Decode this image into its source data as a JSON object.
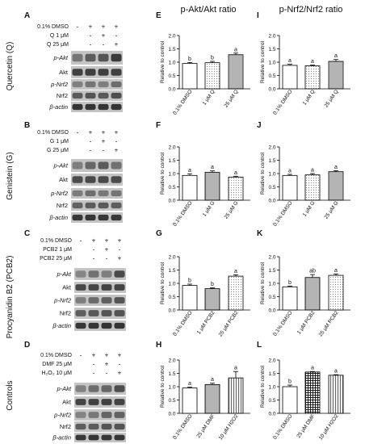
{
  "column_titles": {
    "akt": "p-Akt/Akt ratio",
    "nrf2": "p-Nrf2/Nrf2 ratio"
  },
  "blot_panels": [
    {
      "letter": "A",
      "group": "Quercetin (Q)",
      "treatments": [
        {
          "label": "0.1% DMSO",
          "marks": [
            "-",
            "+",
            "+",
            "+"
          ]
        },
        {
          "label": "Q 1 μM",
          "marks": [
            "-",
            "+",
            "-"
          ]
        },
        {
          "label": "Q 25 μM",
          "marks": [
            "-",
            "-",
            "+"
          ]
        }
      ],
      "proteins": [
        "p-Akt",
        "Akt",
        "p-Nrf2",
        "Nrf2",
        "β-actin"
      ]
    },
    {
      "letter": "B",
      "group": "Genistein (G)",
      "treatments": [
        {
          "label": "0.1% DMSO",
          "marks": [
            "-",
            "+",
            "+",
            "+"
          ]
        },
        {
          "label": "G 1 μM",
          "marks": [
            "-",
            "+",
            "-"
          ]
        },
        {
          "label": "G 25 μM",
          "marks": [
            "-",
            "-",
            "+"
          ]
        }
      ],
      "proteins": [
        "p-Akt",
        "Akt",
        "p-Nrf2",
        "Nrf2",
        "β-actin"
      ]
    },
    {
      "letter": "C",
      "group": "Procyanidin B2 (PCB2)",
      "treatments": [
        {
          "label": "0.1% DMSO",
          "marks": [
            "-",
            "+",
            "+",
            "+"
          ]
        },
        {
          "label": "PCB2 1 μM",
          "marks": [
            "-",
            "+",
            "-"
          ]
        },
        {
          "label": "PCB2 25 μM",
          "marks": [
            "-",
            "-",
            "+"
          ]
        }
      ],
      "proteins": [
        "p-Akt",
        "Akt",
        "p-Nrf2",
        "Nrf2",
        "β-actin"
      ]
    },
    {
      "letter": "D",
      "group": "Controls",
      "treatments": [
        {
          "label": "0.1% DMSO",
          "marks": [
            "-",
            "+",
            "+",
            "+"
          ]
        },
        {
          "label": "DMF 25 μM",
          "marks": [
            "-",
            "+",
            "-"
          ]
        },
        {
          "label": "H₂O₂ 10 μM",
          "marks": [
            "-",
            "-",
            "+"
          ]
        }
      ],
      "proteins": [
        "p-Akt",
        "Akt",
        "p-Nrf2",
        "Nrf2",
        "β-actin"
      ]
    }
  ],
  "chart_data": [
    {
      "panel": "E",
      "type": "bar",
      "categories": [
        "0.1% DMSO",
        "1 μM Q",
        "25 μM Q"
      ],
      "values": [
        0.95,
        0.98,
        1.28
      ],
      "errors": [
        0.04,
        0.05,
        0.06
      ],
      "letters": [
        "b",
        "b",
        "a"
      ],
      "ylabel": "Relative to control",
      "ytick_labels": [
        "0.0",
        "0.5",
        "1.0",
        "1.5",
        "2.0"
      ],
      "ylim": [
        0,
        2
      ]
    },
    {
      "panel": "F",
      "type": "bar",
      "categories": [
        "0.1% DMSO",
        "1 μM G",
        "25 μM G"
      ],
      "values": [
        0.93,
        1.05,
        0.87
      ],
      "errors": [
        0.06,
        0.05,
        0.03
      ],
      "letters": [
        "a",
        "a",
        "a"
      ],
      "ylabel": "Relative to control",
      "ytick_labels": [
        "0.0",
        "0.5",
        "1.0",
        "1.5",
        "2.0"
      ],
      "ylim": [
        0,
        2
      ]
    },
    {
      "panel": "G",
      "type": "bar",
      "categories": [
        "0.1% DMSO",
        "1 μM PCB2",
        "25 μM PCB2"
      ],
      "values": [
        0.92,
        0.8,
        1.27
      ],
      "errors": [
        0.05,
        0.03,
        0.05
      ],
      "letters": [
        "b",
        "b",
        "a"
      ],
      "ylabel": "Relative to control",
      "ytick_labels": [
        "0.0",
        "0.5",
        "1.0",
        "1.5",
        "2.0"
      ],
      "ylim": [
        0,
        2
      ]
    },
    {
      "panel": "H",
      "type": "bar",
      "categories": [
        "0.1% DMSO",
        "25 μM DMF",
        "10 μM H2O2"
      ],
      "values": [
        0.95,
        1.08,
        1.33
      ],
      "errors": [
        0.03,
        0.05,
        0.24
      ],
      "letters": [
        "a",
        "a",
        "a"
      ],
      "ylabel": "Relative to control",
      "ytick_labels": [
        "0.0",
        "0.5",
        "1.0",
        "1.5",
        "2.0"
      ],
      "ylim": [
        0,
        2
      ]
    },
    {
      "panel": "I",
      "type": "bar",
      "categories": [
        "0.1% DMSO",
        "1 μM Q",
        "25 μM Q"
      ],
      "values": [
        0.88,
        0.86,
        1.03
      ],
      "errors": [
        0.04,
        0.03,
        0.07
      ],
      "letters": [
        "a",
        "a",
        "a"
      ],
      "ylabel": "Relative to control",
      "ytick_labels": [
        "0.0",
        "0.5",
        "1.0",
        "1.5",
        "2.0"
      ],
      "ylim": [
        0,
        2
      ]
    },
    {
      "panel": "J",
      "type": "bar",
      "categories": [
        "0.1% DMSO",
        "1 μM G",
        "25 μM G"
      ],
      "values": [
        0.93,
        0.95,
        1.07
      ],
      "errors": [
        0.04,
        0.05,
        0.04
      ],
      "letters": [
        "a",
        "a",
        "a"
      ],
      "ylabel": "Relative to control",
      "ytick_labels": [
        "0.0",
        "0.5",
        "1.0",
        "1.5",
        "2.0"
      ],
      "ylim": [
        0,
        2
      ]
    },
    {
      "panel": "K",
      "type": "bar",
      "categories": [
        "0.1% DMSO",
        "1 μM PCB2",
        "25 μM PCB2"
      ],
      "values": [
        0.87,
        1.22,
        1.3
      ],
      "errors": [
        0.03,
        0.11,
        0.05
      ],
      "letters": [
        "b",
        "ab",
        "a"
      ],
      "ylabel": "Relative to control",
      "ytick_labels": [
        "0.0",
        "0.5",
        "1.0",
        "1.5",
        "2.0"
      ],
      "ylim": [
        0,
        2
      ]
    },
    {
      "panel": "L",
      "type": "bar",
      "categories": [
        "0.1% DMSO",
        "25 μM DMF",
        "10 μM H2O2"
      ],
      "values": [
        1.0,
        1.55,
        1.43
      ],
      "errors": [
        0.06,
        0.02,
        0.02
      ],
      "letters": [
        "b",
        "a",
        "a"
      ],
      "ylabel": "Relative to control",
      "ytick_labels": [
        "0.0",
        "0.5",
        "1.0",
        "1.5",
        "2.0"
      ],
      "ylim": [
        0,
        2
      ]
    }
  ]
}
